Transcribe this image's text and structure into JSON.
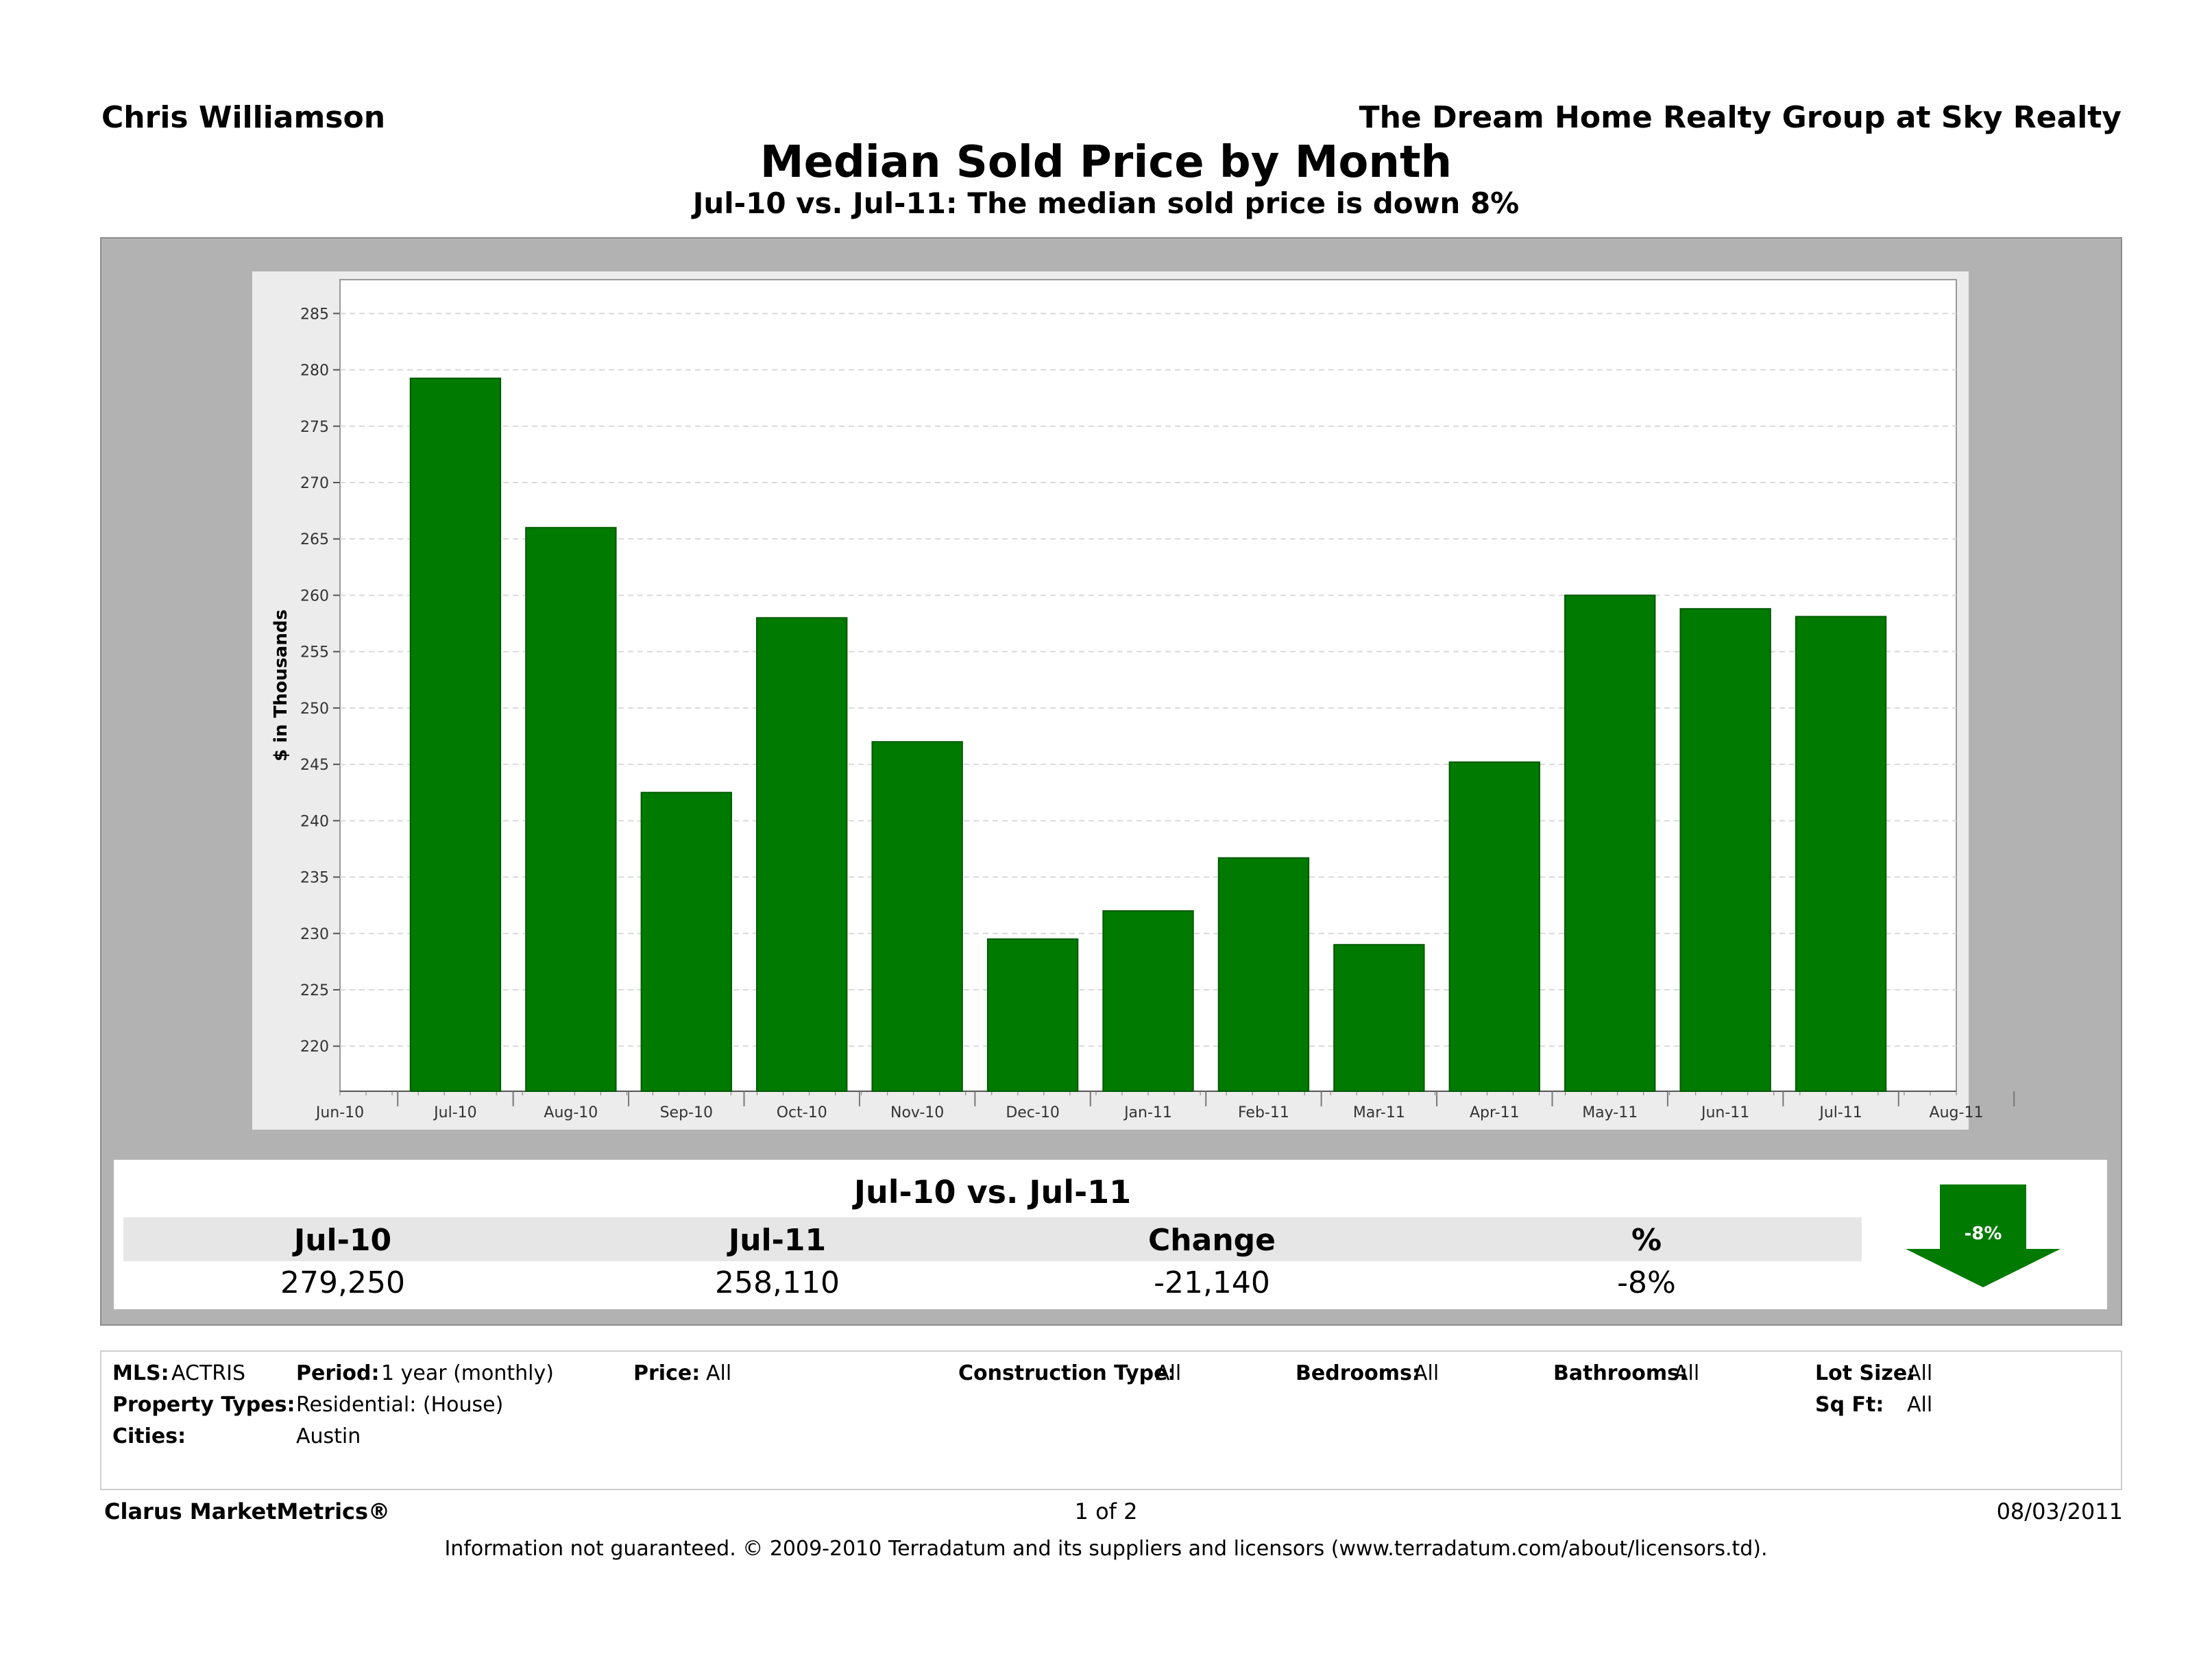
{
  "header": {
    "agent_name": "Chris Williamson",
    "company": "The Dream Home Realty Group at Sky Realty",
    "title": "Median Sold Price by Month",
    "subtitle": "Jul-10 vs. Jul-11:  The median sold price is down 8%"
  },
  "chart_data": {
    "type": "bar",
    "ylabel": "$ in Thousands",
    "xlabel": "",
    "ylim": [
      216,
      288
    ],
    "y_ticks": [
      220,
      225,
      230,
      235,
      240,
      245,
      250,
      255,
      260,
      265,
      270,
      275,
      280,
      285
    ],
    "x_tick_labels": [
      "Jun-10",
      "Jul-10",
      "Aug-10",
      "Sep-10",
      "Oct-10",
      "Nov-10",
      "Dec-10",
      "Jan-11",
      "Feb-11",
      "Mar-11",
      "Apr-11",
      "May-11",
      "Jun-11",
      "Jul-11",
      "Aug-11"
    ],
    "categories": [
      "Jul-10",
      "Aug-10",
      "Sep-10",
      "Oct-10",
      "Nov-10",
      "Dec-10",
      "Jan-11",
      "Feb-11",
      "Mar-11",
      "Apr-11",
      "May-11",
      "Jun-11",
      "Jul-11"
    ],
    "values": [
      279.25,
      266.0,
      242.5,
      258.0,
      247.0,
      229.5,
      232.0,
      236.7,
      229.0,
      245.2,
      260.0,
      258.8,
      258.11
    ],
    "bar_color": "#007a00",
    "grid": true
  },
  "summary": {
    "title": "Jul-10 vs. Jul-11",
    "headers": [
      "Jul-10",
      "Jul-11",
      "Change",
      "%"
    ],
    "values": [
      "279,250",
      "258,110",
      "-21,140",
      "-8%"
    ],
    "arrow_label": "-8%",
    "arrow_color": "#007a00"
  },
  "filters": {
    "mls_label": "MLS:",
    "mls_value": "ACTRIS",
    "period_label": "Period:",
    "period_value": "1 year (monthly)",
    "price_label": "Price:",
    "price_value": "All",
    "construction_label": "Construction Type:",
    "construction_value": "All",
    "bedrooms_label": "Bedrooms:",
    "bedrooms_value": "All",
    "bathrooms_label": "Bathrooms:",
    "bathrooms_value": "All",
    "lot_label": "Lot Size:",
    "lot_value": "All",
    "property_label": "Property Types:",
    "property_value": "Residential: (House)",
    "sqft_label": "Sq Ft:",
    "sqft_value": "All",
    "cities_label": "Cities:",
    "cities_value": "Austin"
  },
  "footer": {
    "brand": "Clarus MarketMetrics®",
    "page": "1 of 2",
    "date": "08/03/2011",
    "disclaimer": "Information not guaranteed.  © 2009-2010 Terradatum and its suppliers and licensors (www.terradatum.com/about/licensors.td)."
  }
}
